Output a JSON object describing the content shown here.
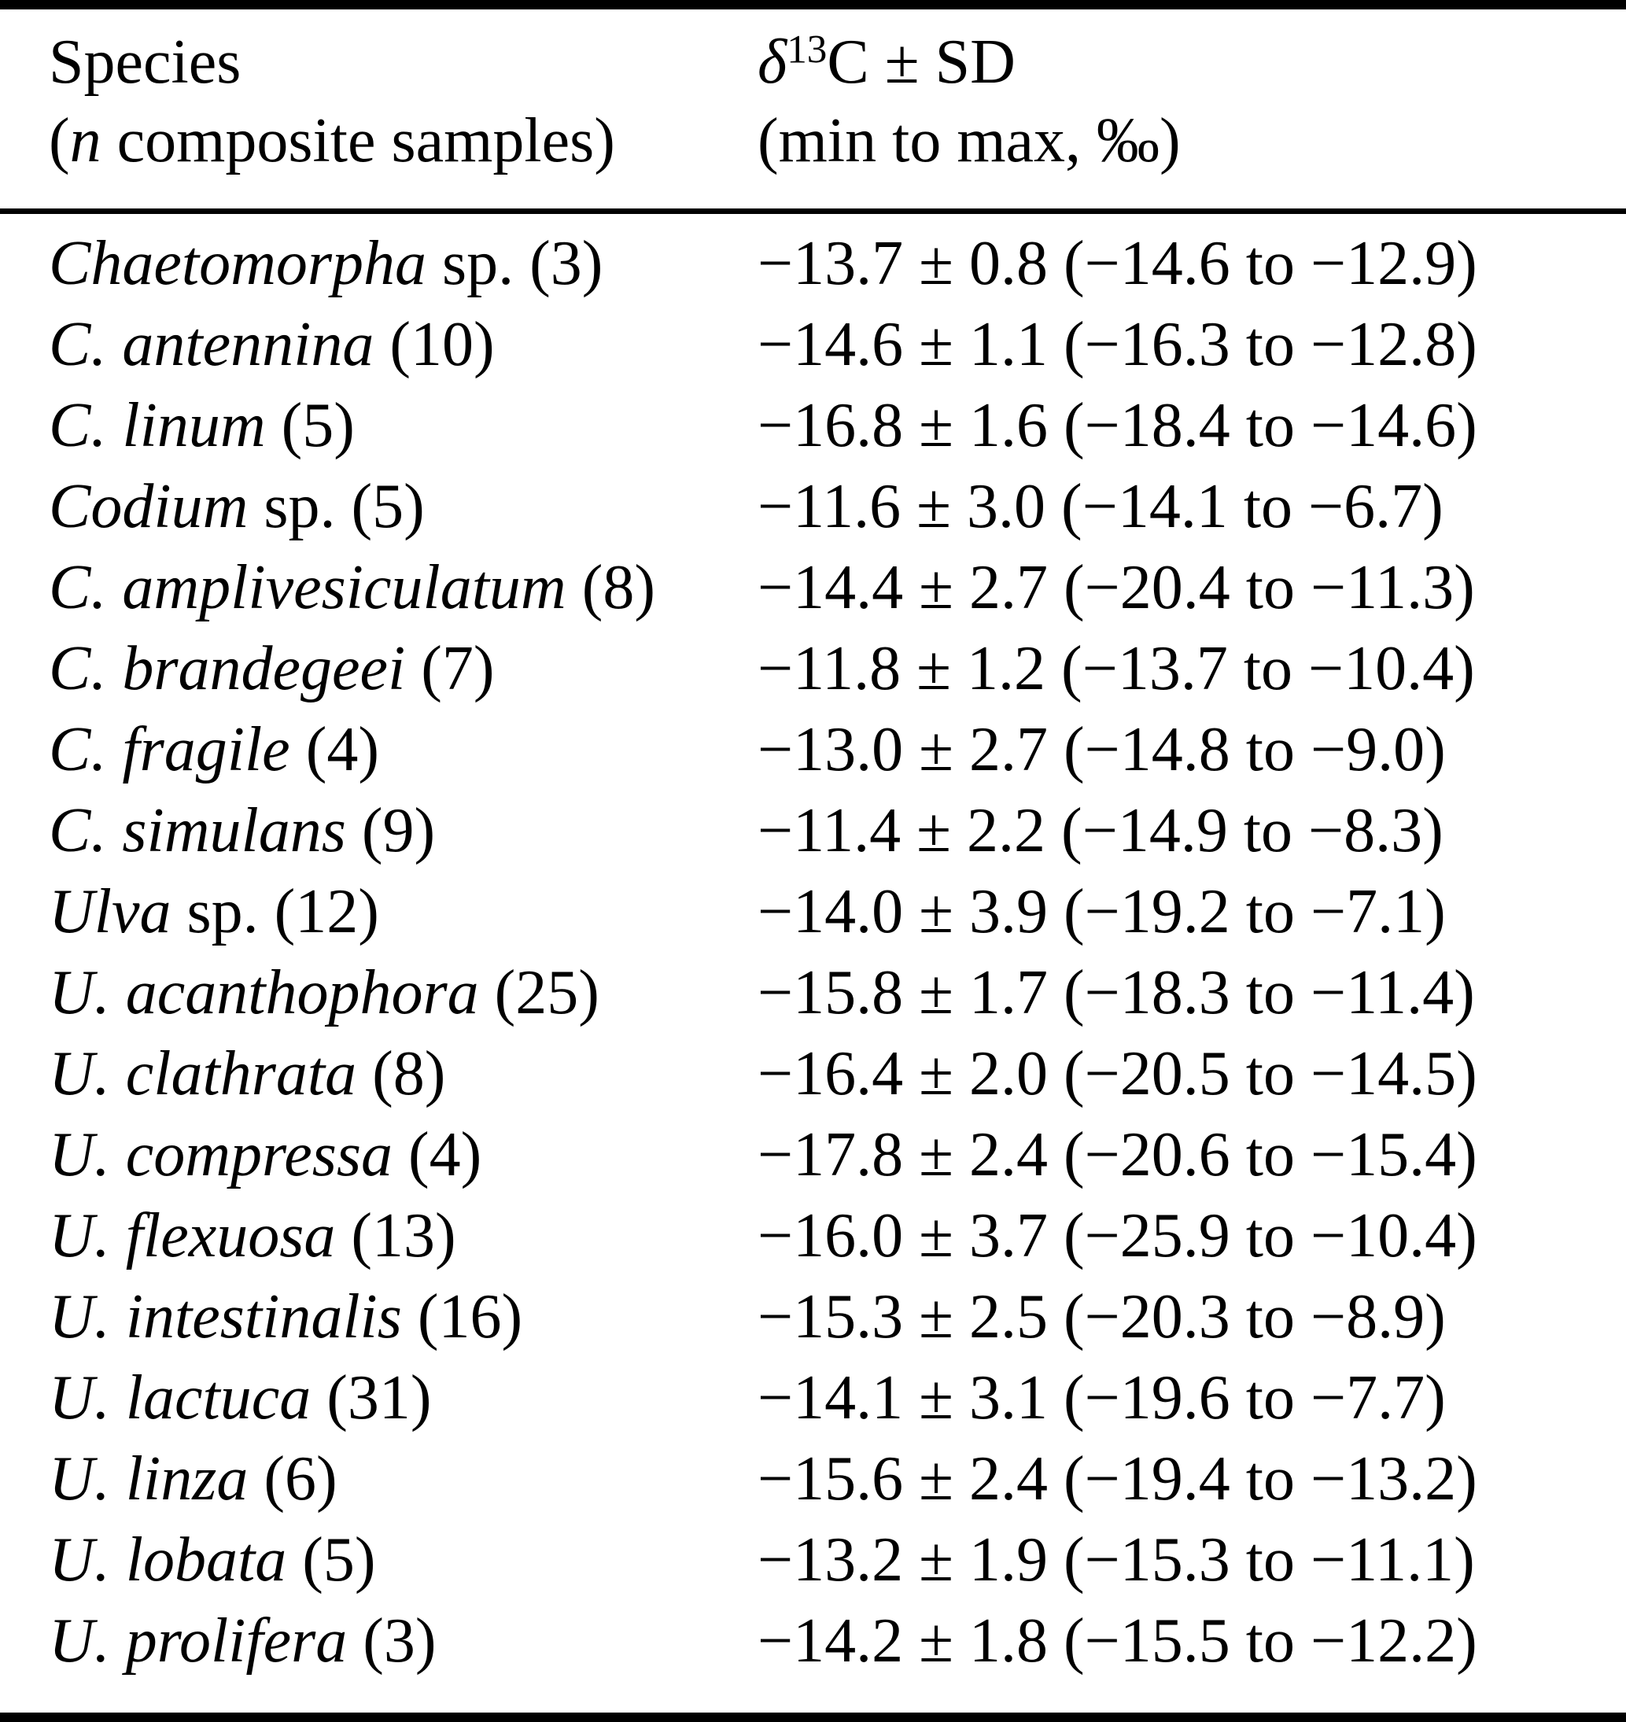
{
  "page": {
    "background_color": "#ffffff",
    "text_color": "#000000",
    "rule_color": "#000000"
  },
  "table": {
    "header": {
      "species": {
        "line1": "Species",
        "line2_open": "(",
        "line2_n": "n",
        "line2_rest": " composite samples)"
      },
      "value": {
        "delta": "δ",
        "superscript": "13",
        "line1_rest": "C ± SD",
        "line2": "(min to max, ‰)"
      }
    },
    "rows": [
      {
        "species_italic": "Chaetomorpha",
        "species_roman": " sp. (3)",
        "value": "−13.7 ± 0.8 (−14.6 to −12.9)"
      },
      {
        "species_italic": "C. antennina",
        "species_roman": " (10)",
        "value": "−14.6 ± 1.1 (−16.3 to −12.8)"
      },
      {
        "species_italic": "C. linum",
        "species_roman": " (5)",
        "value": "−16.8 ± 1.6 (−18.4 to −14.6)"
      },
      {
        "species_italic": "Codium",
        "species_roman": " sp. (5)",
        "value": "−11.6 ± 3.0 (−14.1 to −6.7)"
      },
      {
        "species_italic": "C. amplivesiculatum",
        "species_roman": " (8)",
        "value": "−14.4 ± 2.7 (−20.4 to −11.3)"
      },
      {
        "species_italic": "C. brandegeei",
        "species_roman": " (7)",
        "value": "−11.8 ± 1.2 (−13.7 to −10.4)"
      },
      {
        "species_italic": "C. fragile",
        "species_roman": " (4)",
        "value": "−13.0 ± 2.7 (−14.8 to −9.0)"
      },
      {
        "species_italic": "C. simulans",
        "species_roman": " (9)",
        "value": "−11.4 ± 2.2 (−14.9 to −8.3)"
      },
      {
        "species_italic": "Ulva",
        "species_roman": " sp. (12)",
        "value": "−14.0 ± 3.9 (−19.2 to −7.1)"
      },
      {
        "species_italic": "U. acanthophora",
        "species_roman": " (25)",
        "value": "−15.8 ± 1.7 (−18.3 to −11.4)"
      },
      {
        "species_italic": "U. clathrata",
        "species_roman": " (8)",
        "value": "−16.4 ± 2.0 (−20.5 to −14.5)"
      },
      {
        "species_italic": "U. compressa",
        "species_roman": " (4)",
        "value": "−17.8 ± 2.4 (−20.6 to −15.4)"
      },
      {
        "species_italic": "U. flexuosa",
        "species_roman": " (13)",
        "value": "−16.0 ± 3.7 (−25.9 to −10.4)"
      },
      {
        "species_italic": "U. intestinalis",
        "species_roman": " (16)",
        "value": "−15.3 ± 2.5 (−20.3 to −8.9)"
      },
      {
        "species_italic": "U. lactuca",
        "species_roman": " (31)",
        "value": "−14.1 ± 3.1 (−19.6 to −7.7)"
      },
      {
        "species_italic": "U. linza",
        "species_roman": " (6)",
        "value": "−15.6 ± 2.4 (−19.4 to −13.2)"
      },
      {
        "species_italic": "U. lobata",
        "species_roman": " (5)",
        "value": "−13.2 ± 1.9 (−15.3 to −11.1)"
      },
      {
        "species_italic": "U. prolifera",
        "species_roman": " (3)",
        "value": "−14.2 ± 1.8 (−15.5 to −12.2)"
      }
    ]
  },
  "chart_data": {
    "type": "table",
    "columns": [
      "Species (n composite samples)",
      "δ13C ± SD (min to max, ‰)"
    ],
    "rows": [
      {
        "species": "Chaetomorpha sp.",
        "n": 3,
        "mean": -13.7,
        "sd": 0.8,
        "min": -14.6,
        "max": -12.9
      },
      {
        "species": "C. antennina",
        "n": 10,
        "mean": -14.6,
        "sd": 1.1,
        "min": -16.3,
        "max": -12.8
      },
      {
        "species": "C. linum",
        "n": 5,
        "mean": -16.8,
        "sd": 1.6,
        "min": -18.4,
        "max": -14.6
      },
      {
        "species": "Codium sp.",
        "n": 5,
        "mean": -11.6,
        "sd": 3.0,
        "min": -14.1,
        "max": -6.7
      },
      {
        "species": "C. amplivesiculatum",
        "n": 8,
        "mean": -14.4,
        "sd": 2.7,
        "min": -20.4,
        "max": -11.3
      },
      {
        "species": "C. brandegeei",
        "n": 7,
        "mean": -11.8,
        "sd": 1.2,
        "min": -13.7,
        "max": -10.4
      },
      {
        "species": "C. fragile",
        "n": 4,
        "mean": -13.0,
        "sd": 2.7,
        "min": -14.8,
        "max": -9.0
      },
      {
        "species": "C. simulans",
        "n": 9,
        "mean": -11.4,
        "sd": 2.2,
        "min": -14.9,
        "max": -8.3
      },
      {
        "species": "Ulva sp.",
        "n": 12,
        "mean": -14.0,
        "sd": 3.9,
        "min": -19.2,
        "max": -7.1
      },
      {
        "species": "U. acanthophora",
        "n": 25,
        "mean": -15.8,
        "sd": 1.7,
        "min": -18.3,
        "max": -11.4
      },
      {
        "species": "U. clathrata",
        "n": 8,
        "mean": -16.4,
        "sd": 2.0,
        "min": -20.5,
        "max": -14.5
      },
      {
        "species": "U. compressa",
        "n": 4,
        "mean": -17.8,
        "sd": 2.4,
        "min": -20.6,
        "max": -15.4
      },
      {
        "species": "U. flexuosa",
        "n": 13,
        "mean": -16.0,
        "sd": 3.7,
        "min": -25.9,
        "max": -10.4
      },
      {
        "species": "U. intestinalis",
        "n": 16,
        "mean": -15.3,
        "sd": 2.5,
        "min": -20.3,
        "max": -8.9
      },
      {
        "species": "U. lactuca",
        "n": 31,
        "mean": -14.1,
        "sd": 3.1,
        "min": -19.6,
        "max": -7.7
      },
      {
        "species": "U. linza",
        "n": 6,
        "mean": -15.6,
        "sd": 2.4,
        "min": -19.4,
        "max": -13.2
      },
      {
        "species": "U. lobata",
        "n": 5,
        "mean": -13.2,
        "sd": 1.9,
        "min": -15.3,
        "max": -11.1
      },
      {
        "species": "U. prolifera",
        "n": 3,
        "mean": -14.2,
        "sd": 1.8,
        "min": -15.5,
        "max": -12.2
      }
    ]
  }
}
